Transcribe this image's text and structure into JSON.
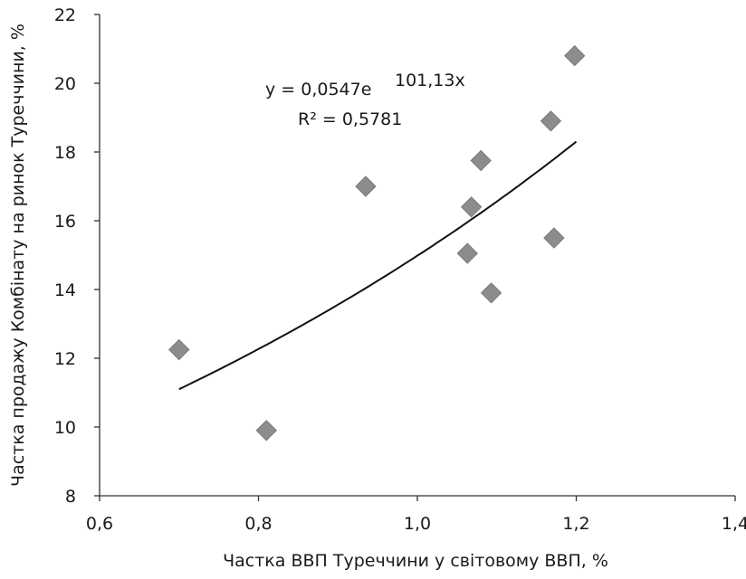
{
  "chart_data": {
    "type": "scatter",
    "xlabel": "Частка ВВП Туреччини  у світовому ВВП, %",
    "ylabel": "Частка продажу Комбінату на ринок Туреччини, %",
    "xlim": [
      0.6,
      1.4
    ],
    "ylim": [
      8,
      22
    ],
    "x_ticks": [
      "0,6",
      "0,8",
      "1,0",
      "1,2",
      "1,4"
    ],
    "y_ticks": [
      "8",
      "10",
      "12",
      "14",
      "16",
      "18",
      "20",
      "22"
    ],
    "grid": false,
    "legend": "none",
    "marker": "diamond",
    "marker_color": "#8c8c8c",
    "line_color": "#111111",
    "points": [
      {
        "x": 0.7,
        "y": 12.25
      },
      {
        "x": 0.81,
        "y": 9.9
      },
      {
        "x": 0.935,
        "y": 17.0
      },
      {
        "x": 1.063,
        "y": 15.05
      },
      {
        "x": 1.068,
        "y": 16.4
      },
      {
        "x": 1.08,
        "y": 17.75
      },
      {
        "x": 1.093,
        "y": 13.9
      },
      {
        "x": 1.168,
        "y": 18.9
      },
      {
        "x": 1.172,
        "y": 15.5
      },
      {
        "x": 1.198,
        "y": 20.8
      }
    ],
    "trendline": {
      "type": "exponential",
      "a": 0.0547,
      "b": 101.13,
      "x_range": [
        0.7,
        1.2
      ],
      "display_value_range": [
        11.1,
        18.3
      ]
    },
    "annotations": {
      "equation_main": "y = 0,0547e",
      "equation_exp": "101,13x",
      "r_squared": "R² = 0,5781"
    }
  }
}
